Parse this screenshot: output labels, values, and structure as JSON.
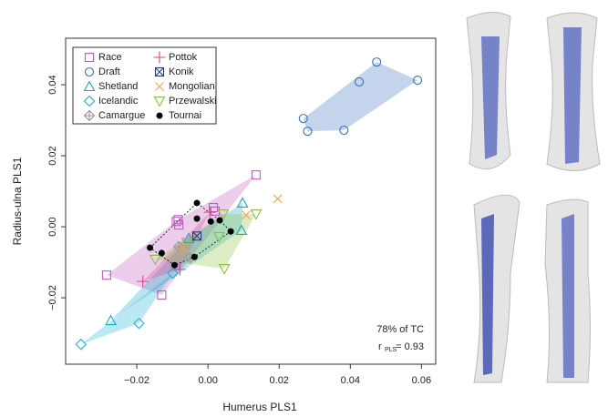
{
  "chart_data": {
    "type": "scatter",
    "xlabel": "Humerus PLS1",
    "ylabel": "Radius-ulna PLS1",
    "annotations": [
      "78% of TC",
      "r",
      "PLS",
      "= 0.93"
    ],
    "xlim": [
      -0.04,
      0.064
    ],
    "ylim": [
      -0.0387,
      0.0531
    ],
    "xticks": [
      {
        "value": -0.02,
        "label": "−0.02"
      },
      {
        "value": 0,
        "label": "0.00"
      },
      0.02,
      0.04,
      0.06
    ],
    "yticks": [
      {
        "value": -0.02,
        "label": "−0.02"
      },
      {
        "value": 0,
        "label": "0.00"
      },
      0.02,
      0.04
    ],
    "series": [
      {
        "name": "Race",
        "color": "#c05cc0",
        "marker": "square",
        "x": [
          0.0135,
          -0.0285,
          -0.013,
          -0.0089,
          -0.0082,
          0.0015,
          0.002,
          -0.0084
        ],
        "y": [
          0.0146,
          -0.0136,
          -0.0192,
          0.0015,
          0.0005,
          0.0054,
          0.0044,
          0.002
        ]
      },
      {
        "name": "Draft",
        "color": "#3a6fc4",
        "marker": "circle",
        "x": [
          0.0268,
          0.028,
          0.0382,
          0.0425,
          0.0474,
          0.0589
        ],
        "y": [
          0.0305,
          0.0269,
          0.0272,
          0.0408,
          0.0464,
          0.0413
        ]
      },
      {
        "name": "Shetland",
        "color": "#1aa9c9",
        "marker": "triangle",
        "x": [
          -0.0273,
          0.0097,
          0.0094,
          -0.0054
        ],
        "y": [
          -0.0264,
          0.0067,
          -0.001,
          -0.0033
        ]
      },
      {
        "name": "Icelandic",
        "color": "#19b3d6",
        "marker": "diamond",
        "x": [
          -0.0357,
          -0.0194,
          -0.0099
        ],
        "y": [
          -0.0331,
          -0.0272,
          -0.0131
        ]
      },
      {
        "name": "Camargue",
        "color": "#999999",
        "marker": "plusdiamond",
        "x": [
          -0.0082,
          -0.0051
        ],
        "y": [
          -0.0056,
          -0.0087
        ]
      },
      {
        "name": "Pottok",
        "color": "#e0408a",
        "marker": "plus",
        "x": [
          -0.0183,
          -0.0079,
          0.0005
        ],
        "y": [
          -0.0154,
          -0.012,
          0.0041
        ]
      },
      {
        "name": "Konik",
        "color": "#2a3a8c",
        "marker": "boxx",
        "x": [
          -0.0031
        ],
        "y": [
          -0.0026
        ]
      },
      {
        "name": "Mongolian",
        "color": "#f0a050",
        "marker": "x",
        "x": [
          0.0196,
          0.0107,
          -0.0071
        ],
        "y": [
          0.0079,
          0.0033,
          -0.0059
        ]
      },
      {
        "name": "Przewalski",
        "color": "#8cc040",
        "marker": "down",
        "x": [
          0.0135,
          0.0043,
          0.0046,
          -0.0059,
          -0.0148,
          0.0031
        ],
        "y": [
          0.0036,
          0.0036,
          -0.0118,
          -0.0044,
          -0.0092,
          -0.0028
        ]
      },
      {
        "name": "Tournai",
        "color": "#000000",
        "marker": "dot",
        "x": [
          -0.0031,
          -0.0031,
          0.0008,
          0.0064,
          -0.0163,
          -0.013,
          -0.0094,
          -0.0038,
          0.0033
        ],
        "y": [
          0.0067,
          0.0023,
          0.0015,
          -0.0013,
          -0.0059,
          -0.0074,
          -0.0108,
          -0.0085,
          0.0018
        ]
      }
    ]
  }
}
